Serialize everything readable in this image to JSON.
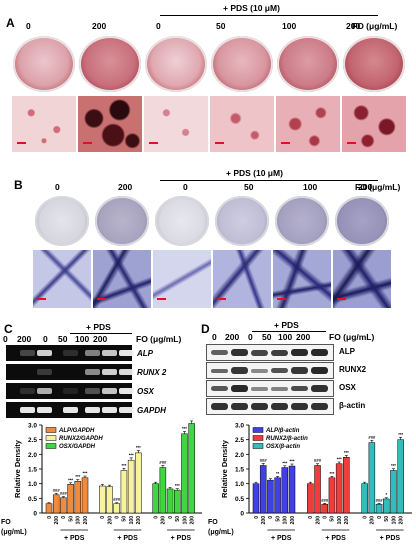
{
  "panel_a": {
    "letter": "A",
    "treatment": "+ PDS (10 μM)",
    "fo_label": "FO (μg/mL)",
    "doses": [
      "0",
      "200",
      "0",
      "50",
      "100",
      "200"
    ]
  },
  "panel_b": {
    "letter": "B",
    "treatment": "+ PDS (10 μM)",
    "fo_label": "FO (μg/mL)",
    "doses": [
      "0",
      "200",
      "0",
      "50",
      "100",
      "200"
    ]
  },
  "panel_c": {
    "letter": "C",
    "treatment": "+ PDS",
    "fo_label": "FO (μg/mL)",
    "doses": [
      "0",
      "200",
      "0",
      "50",
      "100",
      "200"
    ],
    "genes": [
      "ALP",
      "RUNX 2",
      "OSX",
      "GAPDH"
    ]
  },
  "panel_d": {
    "letter": "D",
    "treatment": "+ PDS",
    "fo_label": "FO (μg/mL)",
    "doses": [
      "0",
      "200",
      "0",
      "50",
      "100",
      "200"
    ],
    "proteins": [
      "ALP",
      "RUNX2",
      "OSX",
      "β-actin"
    ]
  },
  "colors": {
    "alp_c": "#f08a3c",
    "runx2_c": "#f6f2a0",
    "osx_c": "#3fd63f",
    "alp_d": "#4040e6",
    "runx2_d": "#f03c3c",
    "osx_d": "#33bcbc",
    "scale_bar": "#e0102a"
  },
  "chart_data": [
    {
      "type": "bar",
      "ylabel": "Relative Density",
      "ylim": [
        0,
        3.0
      ],
      "yticks": [
        "0",
        "0.5",
        "1.0",
        "1.5",
        "2.0",
        "2.5",
        "3.0"
      ],
      "xlabel": "FO (μg/mL)",
      "group_label": "+ PDS",
      "categories": [
        "0",
        "200",
        "0",
        "50",
        "100",
        "200"
      ],
      "legend": "top-left",
      "series": [
        {
          "name": "ALP/GAPDH",
          "color": "#f08a3c",
          "values": [
            0.32,
            0.62,
            0.52,
            0.98,
            1.08,
            1.2
          ],
          "errors": [
            0.03,
            0.05,
            0.04,
            0.05,
            0.06,
            0.06
          ],
          "stars": [
            "",
            "###",
            "###",
            "***",
            "***",
            "***"
          ]
        },
        {
          "name": "RUNX2/GAPDH",
          "color": "#f6f2a0",
          "values": [
            0.92,
            0.9,
            0.32,
            1.45,
            1.8,
            2.05
          ],
          "errors": [
            0.05,
            0.05,
            0.03,
            0.07,
            0.08,
            0.08
          ],
          "stars": [
            "",
            "",
            "###",
            "***",
            "***",
            "***"
          ]
        },
        {
          "name": "OSX/GAPDH",
          "color": "#3fd63f",
          "values": [
            1.0,
            1.55,
            0.82,
            0.78,
            2.7,
            3.05
          ],
          "errors": [
            0.05,
            0.07,
            0.05,
            0.05,
            0.08,
            0.09
          ],
          "stars": [
            "",
            "###",
            "",
            "***",
            "***",
            "***"
          ]
        }
      ]
    },
    {
      "type": "bar",
      "ylabel": "Relative Density",
      "ylim": [
        0,
        3.0
      ],
      "yticks": [
        "0",
        "0.5",
        "1.0",
        "1.5",
        "2.0",
        "2.5",
        "3.0"
      ],
      "xlabel": "FO (μg/mL)",
      "group_label": "+ PDS",
      "categories": [
        "0",
        "200",
        "0",
        "50",
        "100",
        "200"
      ],
      "legend": "top-left",
      "series": [
        {
          "name": "ALP/β-actin",
          "color": "#4040e6",
          "values": [
            1.0,
            1.62,
            1.12,
            1.2,
            1.55,
            1.6
          ],
          "errors": [
            0.05,
            0.07,
            0.05,
            0.05,
            0.06,
            0.07
          ],
          "stars": [
            "",
            "###",
            "",
            "**",
            "***",
            "***"
          ]
        },
        {
          "name": "RUNX2/β-actin",
          "color": "#f03c3c",
          "values": [
            1.0,
            1.62,
            0.3,
            1.2,
            1.68,
            1.9
          ],
          "errors": [
            0.05,
            0.06,
            0.03,
            0.05,
            0.06,
            0.06
          ],
          "stars": [
            "",
            "###",
            "###",
            "***",
            "***",
            "***"
          ]
        },
        {
          "name": "OSX/β-actin",
          "color": "#33bcbc",
          "values": [
            1.0,
            2.4,
            0.3,
            0.48,
            1.45,
            2.5
          ],
          "errors": [
            0.05,
            0.08,
            0.03,
            0.04,
            0.06,
            0.08
          ],
          "stars": [
            "",
            "###",
            "###",
            "*",
            "***",
            "***"
          ]
        }
      ]
    }
  ]
}
